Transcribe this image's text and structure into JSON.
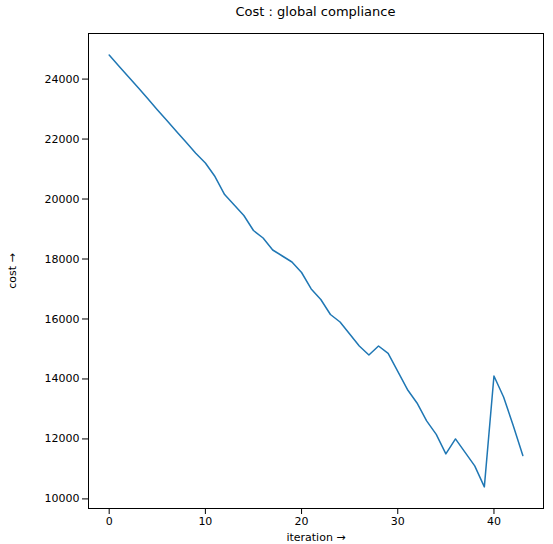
{
  "chart_data": {
    "type": "line",
    "title": "Cost : global compliance",
    "x_label": "iteration",
    "y_label": "cost",
    "x": [
      0,
      1,
      2,
      3,
      4,
      5,
      6,
      7,
      8,
      9,
      10,
      11,
      12,
      13,
      14,
      15,
      16,
      17,
      18,
      19,
      20,
      21,
      22,
      23,
      24,
      25,
      26,
      27,
      28,
      29,
      30,
      31,
      32,
      33,
      34,
      35,
      36,
      37,
      38,
      39,
      40,
      41,
      42,
      43
    ],
    "series": [
      {
        "name": "cost",
        "color": "#1f77b4",
        "values": [
          24800,
          24440,
          24080,
          23720,
          23350,
          22980,
          22620,
          22250,
          21890,
          21530,
          21200,
          20750,
          20150,
          19800,
          19450,
          18950,
          18700,
          18300,
          18100,
          17900,
          17550,
          17000,
          16650,
          16150,
          15900,
          15500,
          15100,
          14800,
          15100,
          14850,
          14250,
          13650,
          13200,
          12600,
          12150,
          11500,
          12000,
          11550,
          11100,
          10400,
          14100,
          13400,
          12450,
          11450
        ]
      }
    ],
    "xlim": [
      -2.15,
      45.15
    ],
    "ylim": [
      9680,
      25520
    ],
    "xticks": [
      0,
      10,
      20,
      30,
      40
    ],
    "yticks": [
      10000,
      12000,
      14000,
      16000,
      18000,
      20000,
      22000,
      24000
    ],
    "grid": false
  }
}
